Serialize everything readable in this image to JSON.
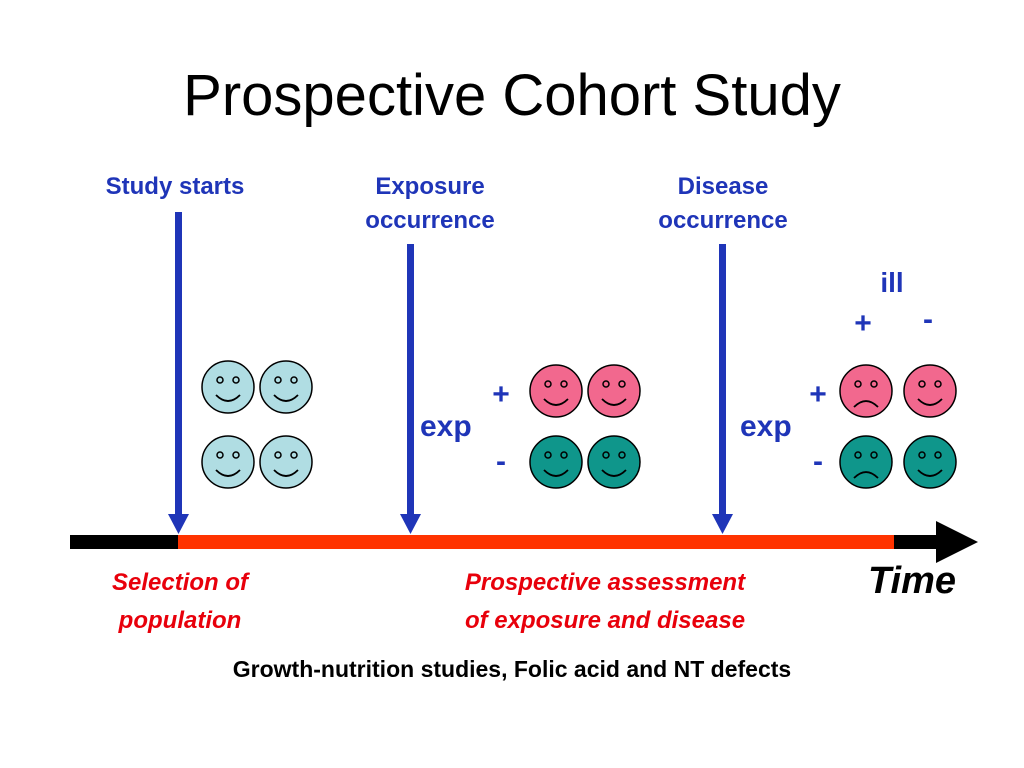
{
  "title": "Prospective Cohort Study",
  "labels": {
    "study_starts": "Study starts",
    "exposure_line1": "Exposure",
    "exposure_line2": "occurrence",
    "disease_line1": "Disease",
    "disease_line2": "occurrence",
    "ill": "ill",
    "plus": "+",
    "minus": "-",
    "exp": "exp",
    "selection_line1": "Selection of",
    "selection_line2": "population",
    "assessment_line1": "Prospective assessment",
    "assessment_line2": "of exposure and disease",
    "time": "Time"
  },
  "footer": "Growth-nutrition studies, Folic acid and NT defects",
  "colors": {
    "arrow_blue": "#1f35b8",
    "timeline_red": "#ff3300",
    "timeline_black": "#000000",
    "face_light_blue": "#b0dde3",
    "face_pink": "#f2688e",
    "face_teal": "#0f968b"
  }
}
